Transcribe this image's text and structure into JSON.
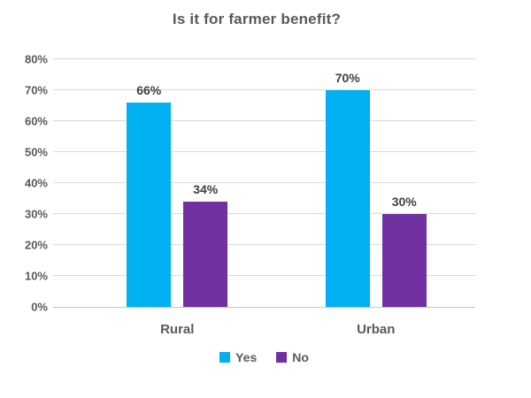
{
  "title": "Is it for farmer benefit?",
  "chart_data": {
    "type": "bar",
    "title": "Is it for farmer benefit?",
    "categories": [
      "Rural",
      "Urban"
    ],
    "series": [
      {
        "name": "Yes",
        "color": "#00B0F0",
        "values": [
          66,
          70
        ],
        "labels": [
          "66%",
          "70%"
        ]
      },
      {
        "name": "No",
        "color": "#7030A0",
        "values": [
          34,
          30
        ],
        "labels": [
          "34%",
          "30%"
        ]
      }
    ],
    "ylim": [
      0,
      80
    ],
    "yticks": [
      "0%",
      "10%",
      "20%",
      "30%",
      "40%",
      "50%",
      "60%",
      "70%",
      "80%"
    ],
    "grid": true,
    "legend_position": "bottom",
    "data_labels": true
  },
  "colors": {
    "background": "#FFFFFF",
    "title_text": "#595959",
    "axis_text": "#595959",
    "data_label_text": "#404040",
    "gridline": "#D9D9D9",
    "axis_line": "#C6C6C6"
  }
}
